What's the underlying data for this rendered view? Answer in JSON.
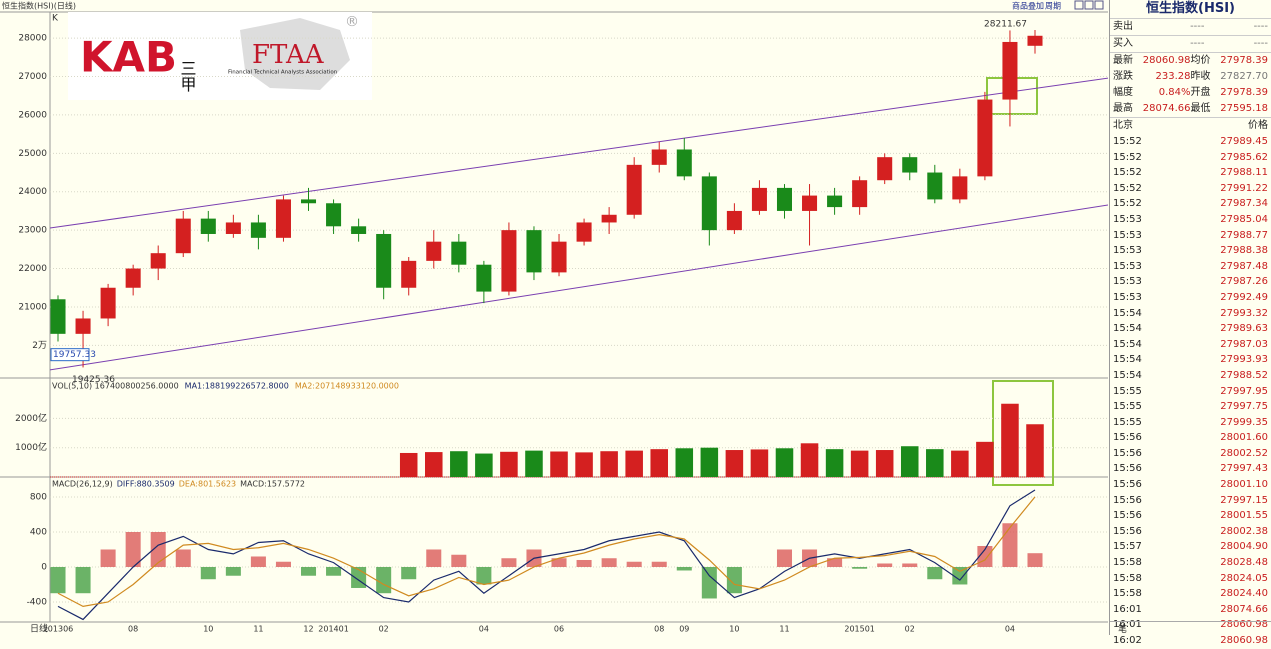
{
  "header": {
    "title": "恒生指数(HSI)(日线)",
    "k_label": "K",
    "menu": [
      "商品叠加",
      "周期"
    ],
    "x_axis_start": "日线"
  },
  "watermark": {
    "kab": "KAB",
    "cjk": "三甲",
    "ftaa": "FTAA",
    "ftaa_full": "Financial Technical Analysts Association",
    "reg": "®"
  },
  "chart_data": [
    {
      "type": "candlestick",
      "categories": [
        "201306",
        null,
        null,
        "08",
        null,
        null,
        "10",
        null,
        "11",
        null,
        "12",
        "201401",
        null,
        "02",
        null,
        null,
        null,
        "04",
        null,
        null,
        "06",
        null,
        null,
        null,
        "08",
        "09",
        null,
        "10",
        null,
        "11",
        null,
        null,
        "201501",
        null,
        "02",
        null,
        null,
        null,
        "04",
        null
      ],
      "ohlc": [
        [
          21200,
          21300,
          20100,
          20300
        ],
        [
          20300,
          20900,
          19425.36,
          20700
        ],
        [
          20700,
          21600,
          20500,
          21500
        ],
        [
          21500,
          22100,
          21300,
          22000
        ],
        [
          22000,
          22600,
          21700,
          22400
        ],
        [
          22400,
          23500,
          22300,
          23300
        ],
        [
          23300,
          23500,
          22700,
          22900
        ],
        [
          22900,
          23400,
          22800,
          23200
        ],
        [
          23200,
          23400,
          22500,
          22800
        ],
        [
          22800,
          23900,
          22700,
          23800
        ],
        [
          23800,
          24100,
          23500,
          23700
        ],
        [
          23700,
          23800,
          22900,
          23100
        ],
        [
          23100,
          23300,
          22700,
          22900
        ],
        [
          22900,
          23000,
          21200,
          21500
        ],
        [
          21500,
          22300,
          21300,
          22200
        ],
        [
          22200,
          23000,
          22000,
          22700
        ],
        [
          22700,
          22900,
          21900,
          22100
        ],
        [
          22100,
          22200,
          21100,
          21400
        ],
        [
          21400,
          23200,
          21300,
          23000
        ],
        [
          23000,
          23100,
          21700,
          21900
        ],
        [
          21900,
          22900,
          21800,
          22700
        ],
        [
          22700,
          23300,
          22600,
          23200
        ],
        [
          23200,
          23600,
          22900,
          23400
        ],
        [
          23400,
          24900,
          23300,
          24700
        ],
        [
          24700,
          25300,
          24500,
          25100
        ],
        [
          25100,
          25400,
          24300,
          24400
        ],
        [
          24400,
          24500,
          22600,
          23000
        ],
        [
          23000,
          23700,
          22900,
          23500
        ],
        [
          23500,
          24300,
          23400,
          24100
        ],
        [
          24100,
          24200,
          23300,
          23500
        ],
        [
          23500,
          24200,
          22600,
          23900
        ],
        [
          23900,
          24100,
          23400,
          23600
        ],
        [
          23600,
          24400,
          23400,
          24300
        ],
        [
          24300,
          25000,
          24200,
          24900
        ],
        [
          24900,
          25000,
          24300,
          24500
        ],
        [
          24500,
          24700,
          23700,
          23800
        ],
        [
          23800,
          24600,
          23700,
          24400
        ],
        [
          24400,
          26600,
          24300,
          26400
        ],
        [
          26400,
          28200,
          25700,
          27900
        ],
        [
          27800,
          28211.67,
          27595.18,
          28060.98
        ]
      ],
      "up_color": "#d42020",
      "down_color": "#1a8a1a",
      "ylim": [
        19150,
        28680
      ],
      "yticks": [
        {
          "value": 20000,
          "label": "2万"
        },
        21000,
        22000,
        23000,
        24000,
        25000,
        26000,
        27000,
        28000
      ],
      "grid": true,
      "channel_lines": [
        {
          "start": 23056,
          "end": 26959,
          "color": "#7a3fb0"
        },
        {
          "start": 19361,
          "end": 23654,
          "color": "#7a3fb0"
        }
      ],
      "high_label": 28211.67,
      "low_label": 19425.36,
      "cursor_price": 19757.33
    },
    {
      "type": "bar",
      "legend": [
        "VOL(5,10) 167400800256.0000",
        "MA1:188199226572.8000",
        "MA2:207148933120.0000"
      ],
      "legend_colors": [
        "#333333",
        "#1a2a6c",
        "#d08a20"
      ],
      "values": [
        0,
        0,
        0,
        0,
        0,
        0,
        0,
        0,
        0,
        0,
        0,
        0,
        0,
        0,
        820,
        850,
        880,
        800,
        860,
        900,
        870,
        840,
        880,
        900,
        950,
        980,
        1000,
        920,
        940,
        980,
        1150,
        950,
        900,
        920,
        1050,
        950,
        900,
        1200,
        2500,
        1800
      ],
      "ylim": [
        0,
        3310
      ],
      "yticks": [
        {
          "value": 1000,
          "label": "1000亿"
        },
        {
          "value": 2000,
          "label": "2000亿"
        }
      ]
    },
    {
      "type": "macd",
      "legend": [
        "MACD(26,12,9)",
        "DIFF:880.3509",
        "DEA:801.5623",
        "MACD:157.5772"
      ],
      "legend_colors": [
        "#333333",
        "#1a2a6c",
        "#d08a20",
        "#333333"
      ],
      "series": [
        {
          "name": "DIFF",
          "color": "#1a2a6c",
          "values": [
            -450,
            -600,
            -300,
            0,
            250,
            350,
            200,
            150,
            280,
            300,
            150,
            50,
            -150,
            -350,
            -400,
            -150,
            -50,
            -300,
            -100,
            100,
            150,
            200,
            300,
            350,
            400,
            300,
            -100,
            -350,
            -250,
            -50,
            100,
            150,
            100,
            150,
            200,
            50,
            -150,
            200,
            700,
            880.35
          ]
        },
        {
          "name": "DEA",
          "color": "#d08a20",
          "values": [
            -300,
            -450,
            -400,
            -200,
            50,
            250,
            270,
            200,
            220,
            270,
            200,
            100,
            -30,
            -200,
            -330,
            -250,
            -120,
            -200,
            -150,
            0,
            100,
            160,
            250,
            320,
            370,
            320,
            80,
            -200,
            -250,
            -150,
            0,
            100,
            110,
            130,
            180,
            120,
            -50,
            80,
            450,
            801.56
          ]
        }
      ],
      "histogram": [
        -300,
        -300,
        200,
        400,
        400,
        200,
        -140,
        -100,
        120,
        60,
        -100,
        -100,
        -240,
        -300,
        -140,
        200,
        140,
        -200,
        100,
        200,
        100,
        80,
        100,
        60,
        60,
        -40,
        -360,
        -300,
        0,
        200,
        200,
        100,
        -20,
        40,
        40,
        -140,
        -200,
        240,
        500,
        157.58
      ],
      "ylim": [
        -629,
        1006
      ],
      "yticks": [
        800,
        400,
        0,
        -400
      ]
    }
  ],
  "quote_panel": {
    "title": "恒生指数(HSI)",
    "bid_ask": [
      [
        "卖出",
        "----",
        "----"
      ],
      [
        "买入",
        "----",
        "----"
      ]
    ],
    "stats": [
      [
        "最新",
        "28060.98",
        "均价",
        "27978.39"
      ],
      [
        "涨跌",
        "233.28",
        "昨收",
        "27827.70"
      ],
      [
        "幅度",
        "0.84%",
        "开盘",
        "27978.39"
      ],
      [
        "最高",
        "28074.66",
        "最低",
        "27595.18"
      ]
    ],
    "tick_header": [
      "北京",
      "价格"
    ],
    "ticks": [
      [
        "15:52",
        "27989.45"
      ],
      [
        "15:52",
        "27985.62"
      ],
      [
        "15:52",
        "27988.11"
      ],
      [
        "15:52",
        "27991.22"
      ],
      [
        "15:52",
        "27987.34"
      ],
      [
        "15:53",
        "27985.04"
      ],
      [
        "15:53",
        "27988.77"
      ],
      [
        "15:53",
        "27988.38"
      ],
      [
        "15:53",
        "27987.48"
      ],
      [
        "15:53",
        "27987.26"
      ],
      [
        "15:53",
        "27992.49"
      ],
      [
        "15:54",
        "27993.32"
      ],
      [
        "15:54",
        "27989.63"
      ],
      [
        "15:54",
        "27987.03"
      ],
      [
        "15:54",
        "27993.93"
      ],
      [
        "15:54",
        "27988.52"
      ],
      [
        "15:55",
        "27997.95"
      ],
      [
        "15:55",
        "27997.75"
      ],
      [
        "15:55",
        "27999.35"
      ],
      [
        "15:56",
        "28001.60"
      ],
      [
        "15:56",
        "28002.52"
      ],
      [
        "15:56",
        "27997.43"
      ],
      [
        "15:56",
        "28001.10"
      ],
      [
        "15:56",
        "27997.15"
      ],
      [
        "15:56",
        "28001.55"
      ],
      [
        "15:56",
        "28002.38"
      ],
      [
        "15:57",
        "28004.90"
      ],
      [
        "15:58",
        "28028.48"
      ],
      [
        "15:58",
        "28024.05"
      ],
      [
        "15:58",
        "28024.40"
      ],
      [
        "16:01",
        "28074.66"
      ],
      [
        "16:01",
        "28060.98"
      ],
      [
        "16:02",
        "28060.98"
      ]
    ],
    "footer": "笔"
  }
}
